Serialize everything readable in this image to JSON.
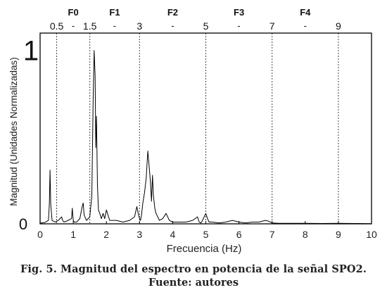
{
  "figure": {
    "caption": "Fig. 5. Magnitud del espectro en potencia de la señal SPO2.",
    "source": "Fuente: autores"
  },
  "chart_data": {
    "type": "line",
    "xlabel": "Frecuencia (Hz)",
    "ylabel": "Magnitud (Unidades Normalizadas)",
    "xlim": [
      0,
      10
    ],
    "ylim": [
      0,
      1.1
    ],
    "xticks": [
      "0",
      "1",
      "2",
      "3",
      "4",
      "5",
      "6",
      "7",
      "8",
      "9",
      "10"
    ],
    "yticks": [
      "0",
      "1"
    ],
    "grid": false,
    "bands": [
      {
        "name": "F0",
        "start": 0.5,
        "end": 1.5
      },
      {
        "name": "F1",
        "start": 1.5,
        "end": 3
      },
      {
        "name": "F2",
        "start": 3,
        "end": 5
      },
      {
        "name": "F3",
        "start": 5,
        "end": 7
      },
      {
        "name": "F4",
        "start": 7,
        "end": 9
      }
    ],
    "band_edge_labels": [
      {
        "x": 0.5,
        "text": "0.5"
      },
      {
        "x": 1.5,
        "text": "1.5"
      },
      {
        "x": 3,
        "text": "3"
      },
      {
        "x": 5,
        "text": "5"
      },
      {
        "x": 7,
        "text": "7"
      },
      {
        "x": 9,
        "text": "9"
      }
    ],
    "band_separator": "-",
    "series": [
      {
        "color": "#000000",
        "x": [
          0.0,
          0.15,
          0.25,
          0.28,
          0.3,
          0.32,
          0.36,
          0.45,
          0.55,
          0.65,
          0.68,
          0.72,
          0.85,
          0.95,
          0.97,
          1.0,
          1.03,
          1.1,
          1.2,
          1.27,
          1.3,
          1.33,
          1.4,
          1.5,
          1.56,
          1.6,
          1.63,
          1.66,
          1.68,
          1.7,
          1.73,
          1.76,
          1.8,
          1.85,
          1.9,
          1.95,
          2.0,
          2.1,
          2.3,
          2.5,
          2.7,
          2.85,
          2.92,
          2.96,
          3.0,
          3.03,
          3.06,
          3.1,
          3.15,
          3.2,
          3.25,
          3.3,
          3.33,
          3.36,
          3.39,
          3.42,
          3.46,
          3.5,
          3.55,
          3.6,
          3.7,
          3.8,
          3.9,
          4.0,
          4.2,
          4.4,
          4.6,
          4.75,
          4.8,
          4.85,
          4.9,
          5.0,
          5.05,
          5.1,
          5.2,
          5.4,
          5.6,
          5.8,
          6.0,
          6.2,
          6.4,
          6.6,
          6.8,
          6.9,
          7.0,
          7.2,
          7.5,
          8.0,
          8.5,
          9.0,
          9.5,
          10.0
        ],
        "y": [
          0.004,
          0.008,
          0.02,
          0.12,
          0.31,
          0.11,
          0.02,
          0.01,
          0.02,
          0.04,
          0.02,
          0.01,
          0.02,
          0.03,
          0.09,
          0.02,
          0.01,
          0.01,
          0.03,
          0.1,
          0.12,
          0.05,
          0.02,
          0.04,
          0.16,
          0.72,
          1.0,
          0.85,
          0.44,
          0.62,
          0.22,
          0.08,
          0.06,
          0.03,
          0.06,
          0.03,
          0.08,
          0.02,
          0.02,
          0.01,
          0.02,
          0.04,
          0.1,
          0.06,
          0.03,
          0.02,
          0.05,
          0.12,
          0.18,
          0.26,
          0.42,
          0.31,
          0.24,
          0.13,
          0.28,
          0.16,
          0.09,
          0.06,
          0.04,
          0.02,
          0.03,
          0.06,
          0.02,
          0.01,
          0.01,
          0.01,
          0.02,
          0.04,
          0.01,
          0.005,
          0.02,
          0.06,
          0.03,
          0.01,
          0.01,
          0.005,
          0.01,
          0.02,
          0.01,
          0.005,
          0.01,
          0.01,
          0.02,
          0.015,
          0.005,
          0.003,
          0.003,
          0.003,
          0.002,
          0.003,
          0.002,
          0.001
        ]
      }
    ]
  }
}
